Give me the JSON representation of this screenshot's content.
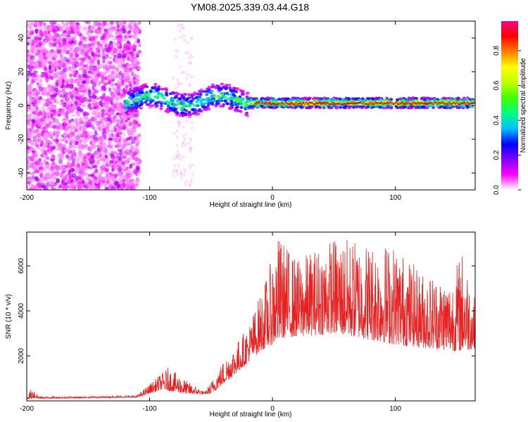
{
  "title": "YM08.2025.339.03.44.G18",
  "chart_data": [
    {
      "type": "heatmap",
      "name": "spectrogram",
      "xlabel": "Height of straight line (km)",
      "ylabel": "Frequency (Hz)",
      "xlim": [
        -200,
        165
      ],
      "ylim": [
        -50,
        50
      ],
      "xticks": [
        -200,
        -100,
        0,
        100
      ],
      "yticks": [
        -40,
        -20,
        0,
        20,
        40
      ],
      "colorbar": {
        "label": "Normalized spectral amplitude",
        "range": [
          0.0,
          0.97
        ],
        "ticks": [
          0.0,
          0.2,
          0.4,
          0.6,
          0.8
        ],
        "colormap": [
          "#ffffff",
          "#ff00ff",
          "#8000ff",
          "#0000ff",
          "#00c0ff",
          "#00ff80",
          "#40ff00",
          "#c0ff00",
          "#ffff00",
          "#ff8000",
          "#ff0000",
          "#ff0080"
        ]
      },
      "description_regions": [
        {
          "x_range": [
            -200,
            -108
          ],
          "freq_range": [
            -50,
            50
          ],
          "amplitude": 0.05,
          "note": "broadband noise"
        },
        {
          "x_range": [
            -80,
            -68
          ],
          "freq_range": [
            -50,
            50
          ],
          "amplitude": 0.02
        },
        {
          "x_range": [
            -120,
            -20
          ],
          "center_freq": [
            0,
            4
          ],
          "amplitude": 0.45
        },
        {
          "x_range": [
            -20,
            165
          ],
          "center_freq": [
            0,
            2
          ],
          "amplitude": 0.9
        }
      ]
    },
    {
      "type": "line",
      "name": "snr",
      "xlabel": "Height of straight line (km)",
      "ylabel": "SNR (10 * v/v)",
      "xlim": [
        -200,
        165
      ],
      "ylim": [
        0,
        7500
      ],
      "xticks": [
        -200,
        -100,
        0,
        100
      ],
      "yticks": [
        2000,
        4000,
        6000
      ],
      "color": "#e8201f",
      "envelope": [
        {
          "x": -200,
          "y": 150
        },
        {
          "x": -195,
          "y": 700
        },
        {
          "x": -190,
          "y": 200
        },
        {
          "x": -150,
          "y": 200
        },
        {
          "x": -110,
          "y": 250
        },
        {
          "x": -95,
          "y": 1000
        },
        {
          "x": -85,
          "y": 1500
        },
        {
          "x": -70,
          "y": 900
        },
        {
          "x": -55,
          "y": 400
        },
        {
          "x": -40,
          "y": 1800
        },
        {
          "x": -20,
          "y": 3300
        },
        {
          "x": -5,
          "y": 5500
        },
        {
          "x": 5,
          "y": 7400
        },
        {
          "x": 20,
          "y": 6300
        },
        {
          "x": 50,
          "y": 7300
        },
        {
          "x": 100,
          "y": 7000
        },
        {
          "x": 120,
          "y": 5800
        },
        {
          "x": 145,
          "y": 5500
        },
        {
          "x": 155,
          "y": 6800
        },
        {
          "x": 165,
          "y": 4500
        }
      ],
      "baseline": [
        {
          "x": -200,
          "y": 100
        },
        {
          "x": -110,
          "y": 150
        },
        {
          "x": -90,
          "y": 500
        },
        {
          "x": -70,
          "y": 300
        },
        {
          "x": -50,
          "y": 300
        },
        {
          "x": -30,
          "y": 1200
        },
        {
          "x": -10,
          "y": 2200
        },
        {
          "x": 10,
          "y": 2800
        },
        {
          "x": 50,
          "y": 3000
        },
        {
          "x": 100,
          "y": 2500
        },
        {
          "x": 150,
          "y": 2200
        },
        {
          "x": 165,
          "y": 2300
        }
      ]
    }
  ]
}
